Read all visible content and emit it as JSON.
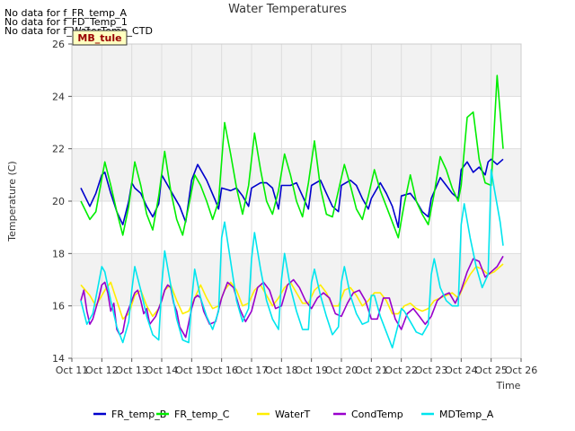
{
  "no_data_messages": [
    "No data for f_FR_temp_A",
    "No data for f_FD_Temp_1",
    "No data for f_WaterTemp_CTD"
  ],
  "site_badge": "MB_tule",
  "colors": {
    "FR_temp_B": "#0000cc",
    "FR_temp_C": "#00ee00",
    "WaterT": "#ffee00",
    "CondTemp": "#9900cc",
    "MDTemp_A": "#00e5ee",
    "band": "#f2f2f2",
    "grid": "#dddddd",
    "badge_bg": "#ffffc0",
    "badge_text": "#990000"
  },
  "chart_data": {
    "type": "line",
    "title": "Water Temperatures",
    "xlabel": "Time",
    "ylabel": "Temperature (C)",
    "xlim": [
      11,
      26
    ],
    "ylim": [
      14,
      26
    ],
    "x_ticks": [
      {
        "value": 11,
        "label": "Oct 11"
      },
      {
        "value": 12,
        "label": "Oct 12"
      },
      {
        "value": 13,
        "label": "Oct 13"
      },
      {
        "value": 14,
        "label": "Oct 14"
      },
      {
        "value": 15,
        "label": "Oct 15"
      },
      {
        "value": 16,
        "label": "Oct 16"
      },
      {
        "value": 17,
        "label": "Oct 17"
      },
      {
        "value": 18,
        "label": "Oct 18"
      },
      {
        "value": 19,
        "label": "Oct 19"
      },
      {
        "value": 20,
        "label": "Oct 20"
      },
      {
        "value": 21,
        "label": "Oct 21"
      },
      {
        "value": 22,
        "label": "Oct 22"
      },
      {
        "value": 23,
        "label": "Oct 23"
      },
      {
        "value": 24,
        "label": "Oct 24"
      },
      {
        "value": 25,
        "label": "Oct 25"
      },
      {
        "value": 26,
        "label": "Oct 26"
      }
    ],
    "y_ticks": [
      14,
      16,
      18,
      20,
      22,
      24,
      26
    ],
    "legend_position": "bottom",
    "series": [
      {
        "name": "FR_temp_B",
        "x": [
          11.3,
          11.6,
          11.8,
          12.0,
          12.1,
          12.3,
          12.5,
          12.7,
          12.9,
          13.0,
          13.1,
          13.3,
          13.5,
          13.7,
          13.9,
          14.0,
          14.2,
          14.4,
          14.6,
          14.8,
          15.0,
          15.2,
          15.5,
          15.8,
          15.9,
          16.0,
          16.3,
          16.5,
          16.7,
          16.9,
          17.0,
          17.3,
          17.5,
          17.7,
          17.9,
          18.0,
          18.3,
          18.5,
          18.7,
          18.9,
          19.0,
          19.3,
          19.5,
          19.7,
          19.9,
          20.0,
          20.3,
          20.5,
          20.7,
          20.9,
          21.0,
          21.3,
          21.5,
          21.7,
          21.9,
          22.0,
          22.3,
          22.5,
          22.7,
          22.9,
          23.0,
          23.3,
          23.5,
          23.7,
          23.9,
          24.0,
          24.2,
          24.4,
          24.6,
          24.8,
          24.9,
          25.0,
          25.2,
          25.4
        ],
        "y": [
          20.5,
          19.8,
          20.3,
          21.0,
          21.1,
          20.3,
          19.6,
          19.1,
          20.0,
          20.7,
          20.5,
          20.3,
          19.8,
          19.4,
          19.9,
          21.0,
          20.6,
          20.2,
          19.8,
          19.2,
          20.8,
          21.4,
          20.8,
          20.0,
          19.7,
          20.5,
          20.4,
          20.5,
          20.2,
          19.8,
          20.5,
          20.7,
          20.7,
          20.5,
          19.7,
          20.6,
          20.6,
          20.7,
          20.2,
          19.7,
          20.6,
          20.8,
          20.3,
          19.8,
          19.6,
          20.6,
          20.8,
          20.6,
          20.1,
          19.7,
          20.1,
          20.7,
          20.3,
          19.8,
          19.0,
          20.2,
          20.3,
          20.0,
          19.6,
          19.4,
          20.1,
          20.9,
          20.6,
          20.3,
          20.1,
          21.2,
          21.5,
          21.1,
          21.3,
          21.0,
          21.5,
          21.6,
          21.4,
          21.6
        ]
      },
      {
        "name": "FR_temp_C",
        "x": [
          11.3,
          11.6,
          11.8,
          12.1,
          12.3,
          12.5,
          12.7,
          12.9,
          13.1,
          13.3,
          13.5,
          13.7,
          13.9,
          14.1,
          14.3,
          14.5,
          14.7,
          14.9,
          15.1,
          15.3,
          15.5,
          15.7,
          15.9,
          16.1,
          16.3,
          16.5,
          16.7,
          16.9,
          17.1,
          17.3,
          17.5,
          17.7,
          17.9,
          18.1,
          18.3,
          18.5,
          18.7,
          18.9,
          19.1,
          19.3,
          19.5,
          19.7,
          19.9,
          20.1,
          20.3,
          20.5,
          20.7,
          20.9,
          21.1,
          21.3,
          21.5,
          21.7,
          21.9,
          22.1,
          22.3,
          22.5,
          22.7,
          22.9,
          23.1,
          23.3,
          23.5,
          23.7,
          23.9,
          24.0,
          24.2,
          24.4,
          24.6,
          24.8,
          25.0,
          25.2,
          25.4
        ],
        "y": [
          20.0,
          19.3,
          19.6,
          21.5,
          20.6,
          19.6,
          18.7,
          19.8,
          21.5,
          20.6,
          19.5,
          18.9,
          20.2,
          21.9,
          20.4,
          19.3,
          18.7,
          19.8,
          21.0,
          20.6,
          20.0,
          19.3,
          20.0,
          23.0,
          21.8,
          20.5,
          19.5,
          20.6,
          22.6,
          21.2,
          20.0,
          19.5,
          20.4,
          21.8,
          21.0,
          20.0,
          19.4,
          20.7,
          22.3,
          20.5,
          19.5,
          19.4,
          20.4,
          21.4,
          20.6,
          19.7,
          19.3,
          20.2,
          21.2,
          20.4,
          19.8,
          19.2,
          18.6,
          19.9,
          21.0,
          20.0,
          19.5,
          19.1,
          20.3,
          21.7,
          21.2,
          20.5,
          20.0,
          20.6,
          23.2,
          23.4,
          21.6,
          20.7,
          20.6,
          24.8,
          22.0
        ]
      },
      {
        "name": "WaterT",
        "x": [
          11.3,
          11.6,
          11.8,
          12.1,
          12.3,
          12.5,
          12.7,
          12.9,
          13.1,
          13.3,
          13.5,
          13.7,
          13.9,
          14.1,
          14.3,
          14.5,
          14.7,
          14.9,
          15.1,
          15.3,
          15.5,
          15.7,
          15.9,
          16.1,
          16.3,
          16.5,
          16.7,
          16.9,
          17.1,
          17.3,
          17.5,
          17.7,
          17.9,
          18.1,
          18.3,
          18.5,
          18.7,
          18.9,
          19.1,
          19.3,
          19.5,
          19.7,
          19.9,
          20.1,
          20.3,
          20.5,
          20.7,
          20.9,
          21.1,
          21.3,
          21.5,
          21.7,
          21.9,
          22.1,
          22.3,
          22.5,
          22.7,
          22.9,
          23.1,
          23.3,
          23.5,
          23.7,
          23.9,
          24.1,
          24.3,
          24.5,
          24.7,
          24.9,
          25.1,
          25.3,
          25.4
        ],
        "y": [
          16.8,
          16.4,
          16.0,
          16.6,
          16.9,
          16.2,
          15.5,
          15.7,
          16.4,
          16.6,
          16.0,
          15.6,
          15.9,
          16.6,
          16.8,
          16.2,
          15.7,
          15.8,
          16.3,
          16.8,
          16.3,
          15.9,
          16.0,
          16.6,
          16.9,
          16.6,
          16.0,
          16.1,
          16.6,
          16.8,
          16.4,
          16.0,
          16.3,
          16.7,
          16.9,
          16.5,
          16.1,
          16.1,
          16.6,
          16.8,
          16.5,
          16.0,
          16.0,
          16.6,
          16.7,
          16.4,
          16.0,
          16.2,
          16.5,
          16.5,
          16.2,
          15.7,
          15.7,
          16.0,
          16.1,
          15.9,
          15.8,
          15.9,
          16.2,
          16.3,
          16.4,
          16.5,
          16.3,
          16.8,
          17.2,
          17.5,
          17.4,
          17.2,
          17.3,
          17.5,
          17.6
        ]
      },
      {
        "name": "CondTemp",
        "x": [
          11.3,
          11.4,
          11.5,
          11.6,
          11.7,
          11.9,
          12.0,
          12.1,
          12.2,
          12.3,
          12.4,
          12.5,
          12.6,
          12.7,
          12.8,
          13.0,
          13.1,
          13.2,
          13.3,
          13.4,
          13.5,
          13.6,
          13.8,
          14.0,
          14.1,
          14.2,
          14.3,
          14.4,
          14.5,
          14.6,
          14.8,
          15.0,
          15.1,
          15.2,
          15.3,
          15.4,
          15.6,
          15.8,
          16.0,
          16.2,
          16.4,
          16.6,
          16.8,
          17.0,
          17.2,
          17.4,
          17.6,
          17.8,
          18.0,
          18.2,
          18.4,
          18.6,
          18.8,
          19.0,
          19.2,
          19.4,
          19.6,
          19.8,
          20.0,
          20.2,
          20.4,
          20.6,
          20.8,
          21.0,
          21.2,
          21.4,
          21.6,
          21.8,
          22.0,
          22.2,
          22.4,
          22.6,
          22.8,
          23.0,
          23.2,
          23.4,
          23.6,
          23.8,
          24.0,
          24.2,
          24.4,
          24.6,
          24.8,
          25.0,
          25.2,
          25.4
        ],
        "y": [
          16.2,
          16.6,
          15.8,
          15.3,
          15.5,
          16.3,
          16.8,
          16.9,
          16.5,
          15.8,
          16.1,
          15.1,
          14.9,
          15.0,
          15.6,
          16.2,
          16.5,
          16.6,
          16.2,
          15.7,
          15.9,
          15.3,
          15.6,
          16.2,
          16.6,
          16.8,
          16.7,
          16.1,
          15.8,
          15.2,
          14.8,
          15.9,
          16.3,
          16.4,
          16.3,
          15.8,
          15.3,
          15.4,
          16.3,
          16.9,
          16.7,
          15.9,
          15.4,
          15.8,
          16.7,
          16.9,
          16.6,
          15.9,
          16.0,
          16.8,
          17.0,
          16.7,
          16.2,
          15.9,
          16.3,
          16.5,
          16.3,
          15.7,
          15.6,
          16.1,
          16.5,
          16.6,
          16.2,
          15.5,
          15.5,
          16.3,
          16.3,
          15.5,
          15.1,
          15.7,
          15.9,
          15.6,
          15.3,
          15.6,
          16.2,
          16.4,
          16.5,
          16.1,
          16.6,
          17.3,
          17.8,
          17.7,
          17.1,
          17.3,
          17.5,
          17.9
        ]
      },
      {
        "name": "MDTemp_A",
        "x": [
          11.3,
          11.5,
          11.7,
          11.9,
          12.0,
          12.1,
          12.3,
          12.5,
          12.7,
          12.9,
          13.0,
          13.1,
          13.3,
          13.5,
          13.7,
          13.9,
          14.0,
          14.1,
          14.3,
          14.5,
          14.7,
          14.9,
          15.0,
          15.1,
          15.3,
          15.5,
          15.7,
          15.9,
          16.0,
          16.1,
          16.3,
          16.5,
          16.7,
          16.9,
          17.0,
          17.1,
          17.3,
          17.5,
          17.7,
          17.9,
          18.0,
          18.1,
          18.3,
          18.5,
          18.7,
          18.9,
          19.0,
          19.1,
          19.3,
          19.5,
          19.7,
          19.9,
          20.0,
          20.1,
          20.3,
          20.5,
          20.7,
          20.9,
          21.0,
          21.1,
          21.3,
          21.5,
          21.7,
          21.9,
          22.0,
          22.1,
          22.3,
          22.5,
          22.7,
          22.9,
          23.0,
          23.1,
          23.3,
          23.5,
          23.7,
          23.9,
          24.0,
          24.1,
          24.3,
          24.5,
          24.7,
          24.9,
          25.0,
          25.1,
          25.3,
          25.4
        ],
        "y": [
          16.2,
          15.3,
          15.7,
          16.9,
          17.5,
          17.3,
          16.2,
          15.2,
          14.6,
          15.4,
          16.6,
          17.5,
          16.6,
          15.6,
          14.9,
          14.7,
          16.8,
          18.1,
          16.8,
          15.5,
          14.7,
          14.6,
          16.2,
          17.4,
          16.3,
          15.6,
          15.1,
          15.8,
          18.6,
          19.2,
          17.7,
          16.2,
          15.4,
          15.9,
          17.8,
          18.8,
          17.4,
          16.2,
          15.5,
          15.1,
          17.0,
          18.0,
          16.7,
          15.8,
          15.1,
          15.1,
          16.9,
          17.4,
          16.4,
          15.6,
          14.9,
          15.2,
          16.9,
          17.5,
          16.4,
          15.7,
          15.3,
          15.4,
          16.4,
          16.4,
          15.6,
          15.0,
          14.4,
          15.3,
          15.9,
          15.8,
          15.4,
          15.0,
          14.9,
          15.3,
          17.2,
          17.8,
          16.7,
          16.2,
          16.0,
          16.0,
          19.1,
          19.9,
          18.6,
          17.5,
          16.7,
          17.2,
          21.2,
          20.5,
          19.2,
          18.3
        ]
      }
    ]
  }
}
